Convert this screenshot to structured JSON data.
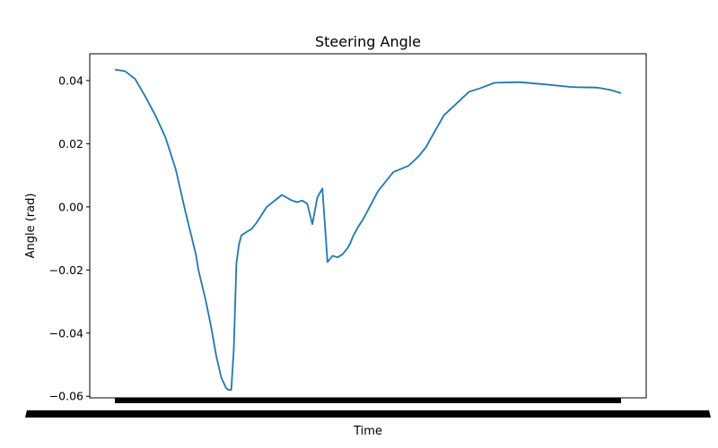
{
  "chart_data": {
    "type": "line",
    "title": "Steering Angle",
    "xlabel": "Time",
    "ylabel": "Angle (rad)",
    "ylim": [
      -0.0605,
      0.0485
    ],
    "y_ticks": [
      0.04,
      0.02,
      0.0,
      -0.02,
      -0.04,
      -0.06
    ],
    "y_tick_labels": [
      "0.04",
      "0.02",
      "0.00",
      "−0.02",
      "−0.04",
      "−0.06"
    ],
    "x_tick_labels_legible": false,
    "grid": false,
    "color": "#1f77b4",
    "series": [
      {
        "x": [
          0,
          0.02,
          0.04,
          0.06,
          0.08,
          0.1,
          0.12,
          0.14,
          0.16,
          0.165,
          0.18,
          0.19,
          0.2,
          0.21,
          0.22,
          0.225,
          0.23,
          0.235,
          0.24,
          0.245,
          0.25,
          0.26,
          0.27,
          0.28,
          0.3,
          0.33,
          0.35,
          0.36,
          0.37,
          0.38,
          0.39,
          0.4,
          0.41,
          0.42,
          0.43,
          0.44,
          0.45,
          0.455,
          0.46,
          0.465,
          0.47,
          0.48,
          0.49,
          0.5,
          0.52,
          0.55,
          0.58,
          0.6,
          0.615,
          0.62,
          0.65,
          0.7,
          0.72,
          0.75,
          0.8,
          0.85,
          0.9,
          0.9125,
          0.95,
          0.96,
          0.98,
          1.0
        ],
        "y": [
          0.0435,
          0.043,
          0.0405,
          0.035,
          0.029,
          0.022,
          0.012,
          -0.002,
          -0.015,
          -0.02,
          -0.03,
          -0.038,
          -0.047,
          -0.054,
          -0.0575,
          -0.058,
          -0.058,
          -0.045,
          -0.018,
          -0.012,
          -0.009,
          -0.008,
          -0.007,
          -0.005,
          0.0,
          0.0038,
          0.002,
          0.0015,
          0.002,
          0.001,
          -0.0055,
          0.003,
          0.0058,
          -0.0175,
          -0.0155,
          -0.016,
          -0.015,
          -0.014,
          -0.013,
          -0.0115,
          -0.0095,
          -0.0065,
          -0.004,
          -0.001,
          0.005,
          0.011,
          0.013,
          0.016,
          0.019,
          0.0205,
          0.029,
          0.0365,
          0.0375,
          0.0393,
          0.0395,
          0.0388,
          0.038,
          0.0379,
          0.0378,
          0.0376,
          0.037,
          0.036
        ]
      }
    ]
  }
}
